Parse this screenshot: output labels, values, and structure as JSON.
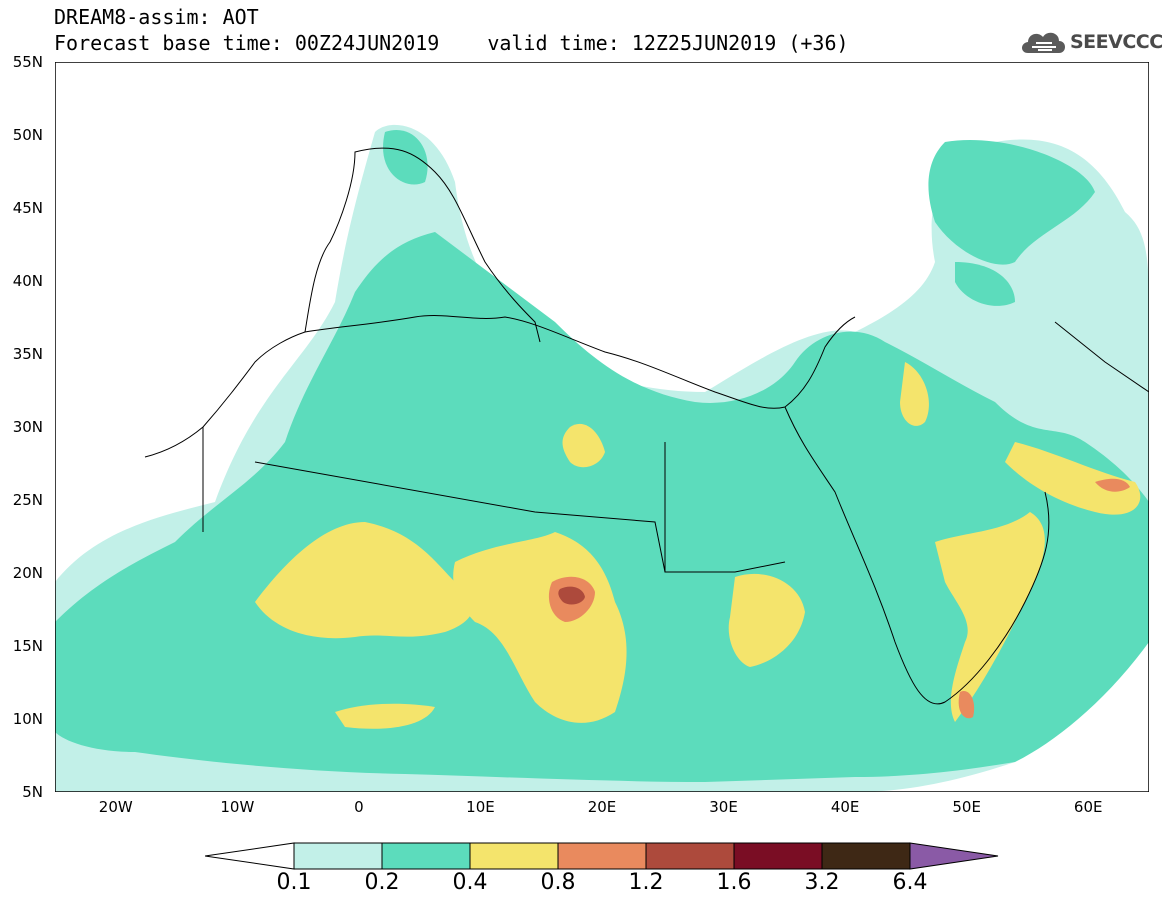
{
  "header": {
    "title_line1": "DREAM8-assim: AOT",
    "forecast_base": "Forecast base time: 00Z24JUN2019",
    "valid_time": "valid time: 12Z25JUN2019 (+36)"
  },
  "logo": {
    "text": "SEEVCCC",
    "icon": "cloud-icon"
  },
  "map": {
    "lat_range": [
      5,
      55
    ],
    "lon_range": [
      -25,
      65
    ],
    "lat_ticks": [
      "55N",
      "50N",
      "45N",
      "40N",
      "35N",
      "30N",
      "25N",
      "20N",
      "15N",
      "10N",
      "5N"
    ],
    "lon_ticks": [
      "20W",
      "10W",
      "0",
      "10E",
      "20E",
      "30E",
      "40E",
      "50E",
      "60E"
    ]
  },
  "colorbar": {
    "labels": [
      "0.1",
      "0.2",
      "0.4",
      "0.8",
      "1.2",
      "1.6",
      "3.2",
      "6.4"
    ],
    "colors": [
      "#ffffff",
      "#c2f0e8",
      "#5cdcbc",
      "#f4e46c",
      "#e98a5e",
      "#ad4a3c",
      "#7a0d24",
      "#3e2815",
      "#8a5aa6"
    ]
  }
}
